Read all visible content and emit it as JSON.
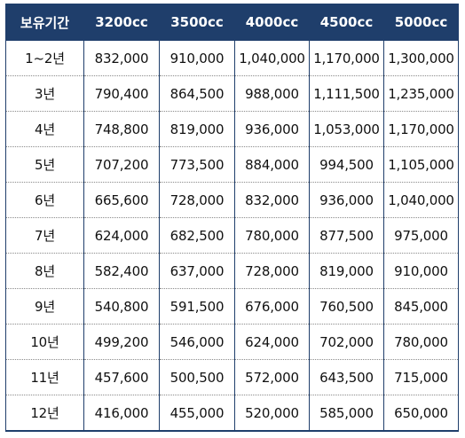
{
  "table": {
    "headers": [
      "보유기간",
      "3200cc",
      "3500cc",
      "4000cc",
      "4500cc",
      "5000cc"
    ],
    "rows": [
      [
        "1~2년",
        "832,000",
        "910,000",
        "1,040,000",
        "1,170,000",
        "1,300,000"
      ],
      [
        "3년",
        "790,400",
        "864,500",
        "988,000",
        "1,111,500",
        "1,235,000"
      ],
      [
        "4년",
        "748,800",
        "819,000",
        "936,000",
        "1,053,000",
        "1,170,000"
      ],
      [
        "5년",
        "707,200",
        "773,500",
        "884,000",
        "994,500",
        "1,105,000"
      ],
      [
        "6년",
        "665,600",
        "728,000",
        "832,000",
        "936,000",
        "1,040,000"
      ],
      [
        "7년",
        "624,000",
        "682,500",
        "780,000",
        "877,500",
        "975,000"
      ],
      [
        "8년",
        "582,400",
        "637,000",
        "728,000",
        "819,000",
        "910,000"
      ],
      [
        "9년",
        "540,800",
        "591,500",
        "676,000",
        "760,500",
        "845,000"
      ],
      [
        "10년",
        "499,200",
        "546,000",
        "624,000",
        "702,000",
        "780,000"
      ],
      [
        "11년",
        "457,600",
        "500,500",
        "572,000",
        "643,500",
        "715,000"
      ],
      [
        "12년",
        "416,000",
        "455,000",
        "520,000",
        "585,000",
        "650,000"
      ]
    ]
  },
  "colors": {
    "header_bg": "#1f3e6b",
    "header_text": "#ffffff",
    "cell_text": "#111111",
    "row_divider": "#8a8a8a"
  }
}
